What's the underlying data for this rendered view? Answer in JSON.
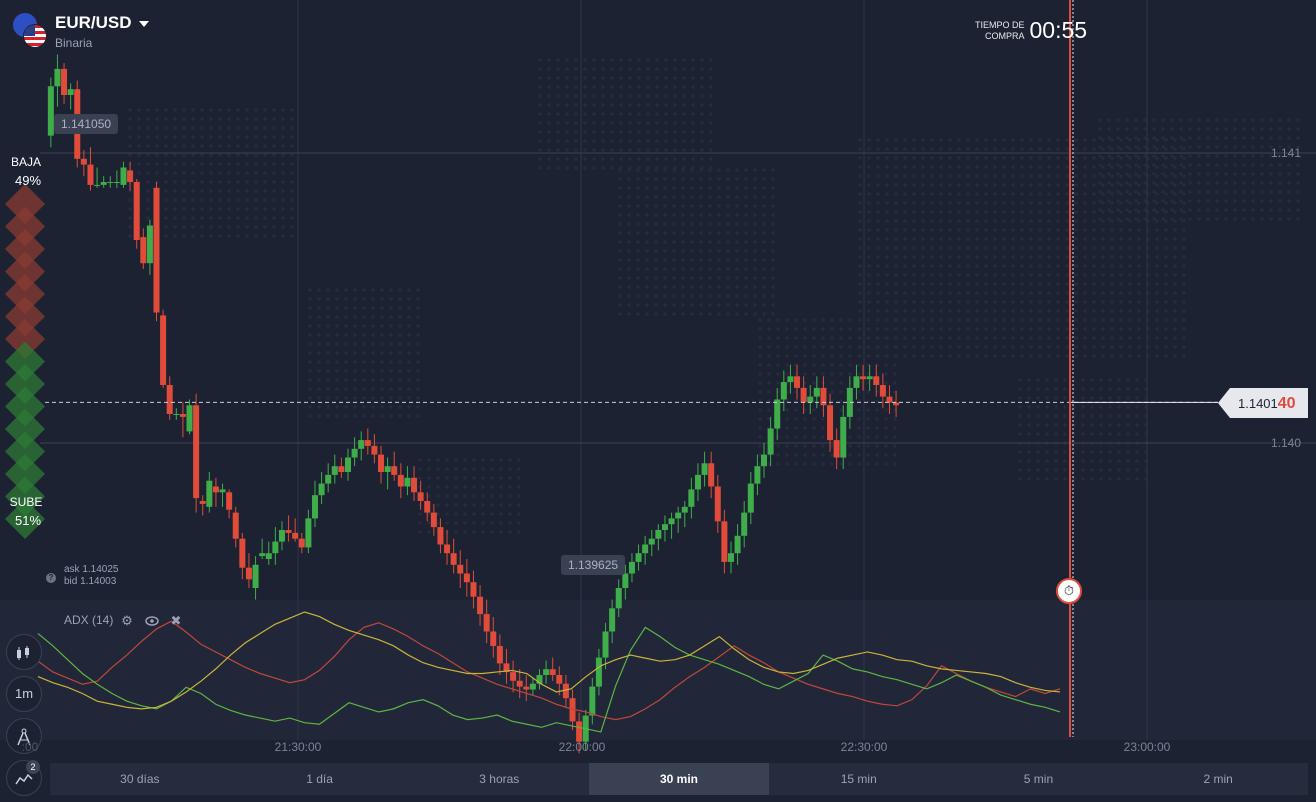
{
  "asset": {
    "name": "EUR/USD",
    "type": "Binaria",
    "flag1_icon": "eu-flag-icon",
    "flag2_icon": "us-flag-icon"
  },
  "timer": {
    "label_line1": "TIEMPO DE",
    "label_line2": "COMPRA",
    "value": "00:55"
  },
  "sentiment": {
    "down_label": "BAJA",
    "down_pct": "49%",
    "up_label": "SUBE",
    "up_pct": "51%",
    "down_value": 49,
    "up_value": 51
  },
  "price_markers": {
    "high": "1.141050",
    "low": "1.139625"
  },
  "current_price": {
    "main": "1.1401",
    "highlight": "40",
    "value": 1.14014
  },
  "quote": {
    "ask": "ask 1.14025",
    "bid": "bid 1.14003"
  },
  "indicator": {
    "name": "ADX (14)",
    "settings_icon": "gear-icon",
    "visibility_icon": "eye-icon",
    "close_icon": "close-icon"
  },
  "toolbar": {
    "chart_type_icon": "candles-icon",
    "interval": "1m",
    "draw_icon": "compass-icon",
    "indicators_icon": "indicator-icon",
    "indicators_count": "2",
    "partial_axis_label": ":00"
  },
  "periods": [
    {
      "label": "30 días",
      "active": false
    },
    {
      "label": "1 día",
      "active": false
    },
    {
      "label": "3 horas",
      "active": false
    },
    {
      "label": "30 min",
      "active": true
    },
    {
      "label": "15 min",
      "active": false
    },
    {
      "label": "5 min",
      "active": false
    },
    {
      "label": "2 min",
      "active": false
    }
  ],
  "colors": {
    "up": "#3fae4a",
    "down": "#e04c39",
    "adx": "#c9b43a",
    "plus_di": "#5cb543",
    "minus_di": "#c0473a",
    "background": "#1d2233"
  },
  "chart_data": {
    "type": "candlestick",
    "price_axis_labels": [
      "1.141",
      "1.140"
    ],
    "y_ticks": [
      1.141,
      1.14
    ],
    "time_axis_labels": [
      "21:30:00",
      "22:00:00",
      "22:30:00",
      "23:00:00"
    ],
    "time_ticks_minutes": [
      1290,
      1320,
      1350,
      1380
    ],
    "x_range_minutes": [
      1263.5,
      1381
    ],
    "y_range": [
      1.1396,
      1.1414
    ],
    "candles": [
      {
        "t": 1263.8,
        "o": 1.14106,
        "h": 1.14126,
        "l": 1.14102,
        "c": 1.14123
      },
      {
        "t": 1264.5,
        "o": 1.14123,
        "h": 1.14134,
        "l": 1.14116,
        "c": 1.14129
      },
      {
        "t": 1265.2,
        "o": 1.14129,
        "h": 1.14131,
        "l": 1.14117,
        "c": 1.1412
      },
      {
        "t": 1265.9,
        "o": 1.1412,
        "h": 1.14124,
        "l": 1.14115,
        "c": 1.14122
      },
      {
        "t": 1266.6,
        "o": 1.14122,
        "h": 1.14125,
        "l": 1.14095,
        "c": 1.14098
      },
      {
        "t": 1267.3,
        "o": 1.14098,
        "h": 1.14101,
        "l": 1.14092,
        "c": 1.14096
      },
      {
        "t": 1268.0,
        "o": 1.14096,
        "h": 1.14102,
        "l": 1.14087,
        "c": 1.14089
      },
      {
        "t": 1268.7,
        "o": 1.14089,
        "h": 1.14095,
        "l": 1.14088,
        "c": 1.14089
      },
      {
        "t": 1269.4,
        "o": 1.14089,
        "h": 1.14092,
        "l": 1.14088,
        "c": 1.1409
      },
      {
        "t": 1270.1,
        "o": 1.1409,
        "h": 1.14092,
        "l": 1.14088,
        "c": 1.1409
      },
      {
        "t": 1270.8,
        "o": 1.1409,
        "h": 1.14094,
        "l": 1.14088,
        "c": 1.1409
      },
      {
        "t": 1271.5,
        "o": 1.14089,
        "h": 1.14097,
        "l": 1.14088,
        "c": 1.14095
      },
      {
        "t": 1272.2,
        "o": 1.14094,
        "h": 1.14097,
        "l": 1.14087,
        "c": 1.1409
      },
      {
        "t": 1272.9,
        "o": 1.1409,
        "h": 1.14091,
        "l": 1.14067,
        "c": 1.1407
      },
      {
        "t": 1273.6,
        "o": 1.14071,
        "h": 1.14074,
        "l": 1.1406,
        "c": 1.14062
      },
      {
        "t": 1274.3,
        "o": 1.14062,
        "h": 1.14077,
        "l": 1.14058,
        "c": 1.14075
      },
      {
        "t": 1275.0,
        "o": 1.14088,
        "h": 1.1409,
        "l": 1.14042,
        "c": 1.14045
      },
      {
        "t": 1275.7,
        "o": 1.14044,
        "h": 1.14046,
        "l": 1.14019,
        "c": 1.1402
      },
      {
        "t": 1276.4,
        "o": 1.1402,
        "h": 1.14023,
        "l": 1.14008,
        "c": 1.1401
      },
      {
        "t": 1277.1,
        "o": 1.1401,
        "h": 1.14012,
        "l": 1.14008,
        "c": 1.1401
      },
      {
        "t": 1277.8,
        "o": 1.1401,
        "h": 1.14014,
        "l": 1.14002,
        "c": 1.14009
      },
      {
        "t": 1278.5,
        "o": 1.14004,
        "h": 1.14015,
        "l": 1.14003,
        "c": 1.14013
      },
      {
        "t": 1279.2,
        "o": 1.14013,
        "h": 1.14017,
        "l": 1.13976,
        "c": 1.13981
      },
      {
        "t": 1279.9,
        "o": 1.1398,
        "h": 1.13982,
        "l": 1.13975,
        "c": 1.13979
      },
      {
        "t": 1280.6,
        "o": 1.13978,
        "h": 1.1399,
        "l": 1.13976,
        "c": 1.13987
      },
      {
        "t": 1281.3,
        "o": 1.13985,
        "h": 1.13988,
        "l": 1.13978,
        "c": 1.13983
      },
      {
        "t": 1282.0,
        "o": 1.13983,
        "h": 1.13986,
        "l": 1.13978,
        "c": 1.13984
      },
      {
        "t": 1282.7,
        "o": 1.13983,
        "h": 1.13984,
        "l": 1.13974,
        "c": 1.13977
      },
      {
        "t": 1283.4,
        "o": 1.13976,
        "h": 1.13978,
        "l": 1.13964,
        "c": 1.13967
      },
      {
        "t": 1284.1,
        "o": 1.13967,
        "h": 1.13969,
        "l": 1.13953,
        "c": 1.13957
      },
      {
        "t": 1284.8,
        "o": 1.13957,
        "h": 1.13962,
        "l": 1.1395,
        "c": 1.13953
      },
      {
        "t": 1285.5,
        "o": 1.1395,
        "h": 1.13961,
        "l": 1.13946,
        "c": 1.13958
      },
      {
        "t": 1286.2,
        "o": 1.13961,
        "h": 1.13967,
        "l": 1.1396,
        "c": 1.13962
      },
      {
        "t": 1286.9,
        "o": 1.1396,
        "h": 1.13966,
        "l": 1.13958,
        "c": 1.13962
      }
    ],
    "note_candles": "remaining candles continue in script-generated sequence below",
    "candles_tail": [
      [
        1287.6,
        1.13962,
        1.13971,
        1.13958,
        1.13966
      ],
      [
        1288.3,
        1.13966,
        1.13973,
        1.13963,
        1.1397
      ],
      [
        1289.0,
        1.1397,
        1.13975,
        1.13966,
        1.13969
      ],
      [
        1289.7,
        1.13969,
        1.13974,
        1.13966,
        1.13967
      ],
      [
        1290.4,
        1.13967,
        1.13969,
        1.13962,
        1.13964
      ],
      [
        1291.1,
        1.13964,
        1.13977,
        1.13962,
        1.13974
      ],
      [
        1291.8,
        1.13974,
        1.13987,
        1.13971,
        1.13982
      ],
      [
        1292.5,
        1.13982,
        1.1399,
        1.13979,
        1.13986
      ],
      [
        1293.2,
        1.13986,
        1.13993,
        1.13983,
        1.13989
      ],
      [
        1293.9,
        1.13989,
        1.13996,
        1.13986,
        1.13992
      ],
      [
        1294.6,
        1.13992,
        1.13995,
        1.13988,
        1.1399
      ],
      [
        1295.3,
        1.1399,
        1.13998,
        1.13987,
        1.13995
      ],
      [
        1296.0,
        1.13995,
        1.14002,
        1.13992,
        1.13998
      ],
      [
        1296.7,
        1.13998,
        1.14004,
        1.13994,
        1.14001
      ],
      [
        1297.4,
        1.14001,
        1.14005,
        1.13996,
        1.13999
      ],
      [
        1298.1,
        1.13999,
        1.14003,
        1.13993,
        1.13996
      ],
      [
        1298.8,
        1.13996,
        1.13999,
        1.13986,
        1.1399
      ],
      [
        1299.5,
        1.1399,
        1.13995,
        1.13984,
        1.13992
      ],
      [
        1300.2,
        1.13992,
        1.13997,
        1.13987,
        1.13989
      ],
      [
        1300.9,
        1.13989,
        1.13993,
        1.13981,
        1.13985
      ],
      [
        1301.6,
        1.13985,
        1.13992,
        1.13982,
        1.13988
      ],
      [
        1302.3,
        1.13988,
        1.13992,
        1.1398,
        1.13983
      ],
      [
        1303.0,
        1.13983,
        1.13987,
        1.13977,
        1.1398
      ],
      [
        1303.7,
        1.1398,
        1.13983,
        1.13973,
        1.13976
      ],
      [
        1304.4,
        1.13976,
        1.13979,
        1.13968,
        1.13971
      ],
      [
        1305.1,
        1.13971,
        1.13974,
        1.13962,
        1.13965
      ],
      [
        1305.8,
        1.13965,
        1.1397,
        1.13958,
        1.13962
      ],
      [
        1306.5,
        1.13962,
        1.13967,
        1.13955,
        1.13958
      ],
      [
        1307.2,
        1.13958,
        1.13963,
        1.1395,
        1.13955
      ],
      [
        1307.9,
        1.13955,
        1.1396,
        1.13947,
        1.13952
      ],
      [
        1308.6,
        1.13952,
        1.13956,
        1.13943,
        1.13947
      ],
      [
        1309.3,
        1.13947,
        1.13951,
        1.13937,
        1.13941
      ],
      [
        1310.0,
        1.13941,
        1.13946,
        1.13931,
        1.13935
      ],
      [
        1310.7,
        1.13935,
        1.1394,
        1.13926,
        1.1393
      ],
      [
        1311.4,
        1.1393,
        1.13934,
        1.1392,
        1.13924
      ],
      [
        1312.1,
        1.13924,
        1.13929,
        1.13917,
        1.13921
      ],
      [
        1312.8,
        1.13921,
        1.13925,
        1.13914,
        1.13918
      ],
      [
        1313.5,
        1.13918,
        1.13922,
        1.13912,
        1.13916
      ],
      [
        1314.2,
        1.13916,
        1.1392,
        1.13911,
        1.13915
      ],
      [
        1314.9,
        1.13915,
        1.13919,
        1.13913,
        1.13917
      ],
      [
        1315.6,
        1.13917,
        1.13922,
        1.13915,
        1.1392
      ],
      [
        1316.3,
        1.1392,
        1.13925,
        1.13917,
        1.13922
      ],
      [
        1317.0,
        1.13922,
        1.13926,
        1.13918,
        1.1392
      ],
      [
        1317.7,
        1.1392,
        1.13923,
        1.13913,
        1.13917
      ],
      [
        1318.4,
        1.13917,
        1.1392,
        1.13909,
        1.13912
      ],
      [
        1319.1,
        1.13912,
        1.13915,
        1.13901,
        1.13904
      ],
      [
        1319.8,
        1.13904,
        1.13907,
        1.13893,
        1.13897
      ],
      [
        1320.5,
        1.13897,
        1.13908,
        1.13894,
        1.13906
      ],
      [
        1321.2,
        1.13906,
        1.13919,
        1.13903,
        1.13916
      ],
      [
        1321.9,
        1.13916,
        1.13929,
        1.13913,
        1.13926
      ],
      [
        1322.6,
        1.13926,
        1.13938,
        1.13922,
        1.13935
      ],
      [
        1323.3,
        1.13935,
        1.13946,
        1.13931,
        1.13943
      ],
      [
        1324.0,
        1.13943,
        1.13953,
        1.1394,
        1.1395
      ],
      [
        1324.7,
        1.1395,
        1.13958,
        1.13946,
        1.13955
      ],
      [
        1325.4,
        1.13955,
        1.13962,
        1.13952,
        1.13959
      ],
      [
        1326.1,
        1.13959,
        1.13965,
        1.13956,
        1.13962
      ],
      [
        1326.8,
        1.13962,
        1.13968,
        1.13958,
        1.13965
      ],
      [
        1327.5,
        1.13965,
        1.1397,
        1.13961,
        1.13967
      ],
      [
        1328.2,
        1.13967,
        1.13972,
        1.13963,
        1.1397
      ],
      [
        1328.9,
        1.1397,
        1.13975,
        1.13966,
        1.13972
      ],
      [
        1329.6,
        1.13972,
        1.13976,
        1.13967,
        1.13974
      ],
      [
        1330.3,
        1.13974,
        1.13978,
        1.13969,
        1.13976
      ],
      [
        1331.0,
        1.13976,
        1.1398,
        1.13971,
        1.13978
      ]
    ],
    "series_adx": [
      {
        "name": "ADX",
        "color": "#c9b43a"
      }
    ],
    "adx_range": [
      0,
      100
    ],
    "adx_points": {
      "adx": [
        38,
        34,
        31,
        27,
        22,
        20,
        18,
        17,
        18,
        22,
        28,
        35,
        43,
        52,
        60,
        66,
        72,
        76,
        80,
        77,
        72,
        68,
        65,
        62,
        58,
        52,
        47,
        44,
        42,
        40,
        40,
        41,
        42,
        40,
        33,
        28,
        30,
        38,
        45,
        49,
        52,
        50,
        48,
        49,
        52,
        58,
        64,
        56,
        49,
        44,
        41,
        40,
        42,
        46,
        50,
        52,
        54,
        52,
        49,
        48,
        45,
        43,
        42,
        41,
        40,
        38,
        34,
        31,
        29,
        28
      ],
      "plus_di": [
        66,
        58,
        49,
        40,
        33,
        27,
        22,
        19,
        17,
        22,
        31,
        27,
        20,
        16,
        13,
        11,
        9,
        11,
        8,
        7,
        14,
        21,
        18,
        15,
        17,
        21,
        23,
        19,
        13,
        10,
        11,
        13,
        9,
        7,
        5,
        8,
        6,
        4,
        2,
        32,
        55,
        70,
        64,
        57,
        52,
        49,
        46,
        42,
        38,
        33,
        30,
        35,
        40,
        52,
        48,
        43,
        41,
        38,
        36,
        33,
        30,
        34,
        39,
        35,
        31,
        26,
        23,
        20,
        18,
        15
      ],
      "minus_di": [
        48,
        41,
        37,
        33,
        35,
        44,
        52,
        61,
        69,
        74,
        67,
        59,
        54,
        49,
        44,
        40,
        37,
        34,
        36,
        42,
        51,
        62,
        70,
        73,
        69,
        64,
        58,
        53,
        47,
        41,
        37,
        33,
        30,
        27,
        24,
        20,
        17,
        15,
        12,
        10,
        12,
        17,
        23,
        31,
        38,
        44,
        51,
        58,
        52,
        47,
        41,
        37,
        33,
        30,
        27,
        25,
        22,
        20,
        19,
        23,
        32,
        45,
        40,
        35,
        31,
        28,
        25,
        30,
        27,
        30
      ]
    }
  }
}
